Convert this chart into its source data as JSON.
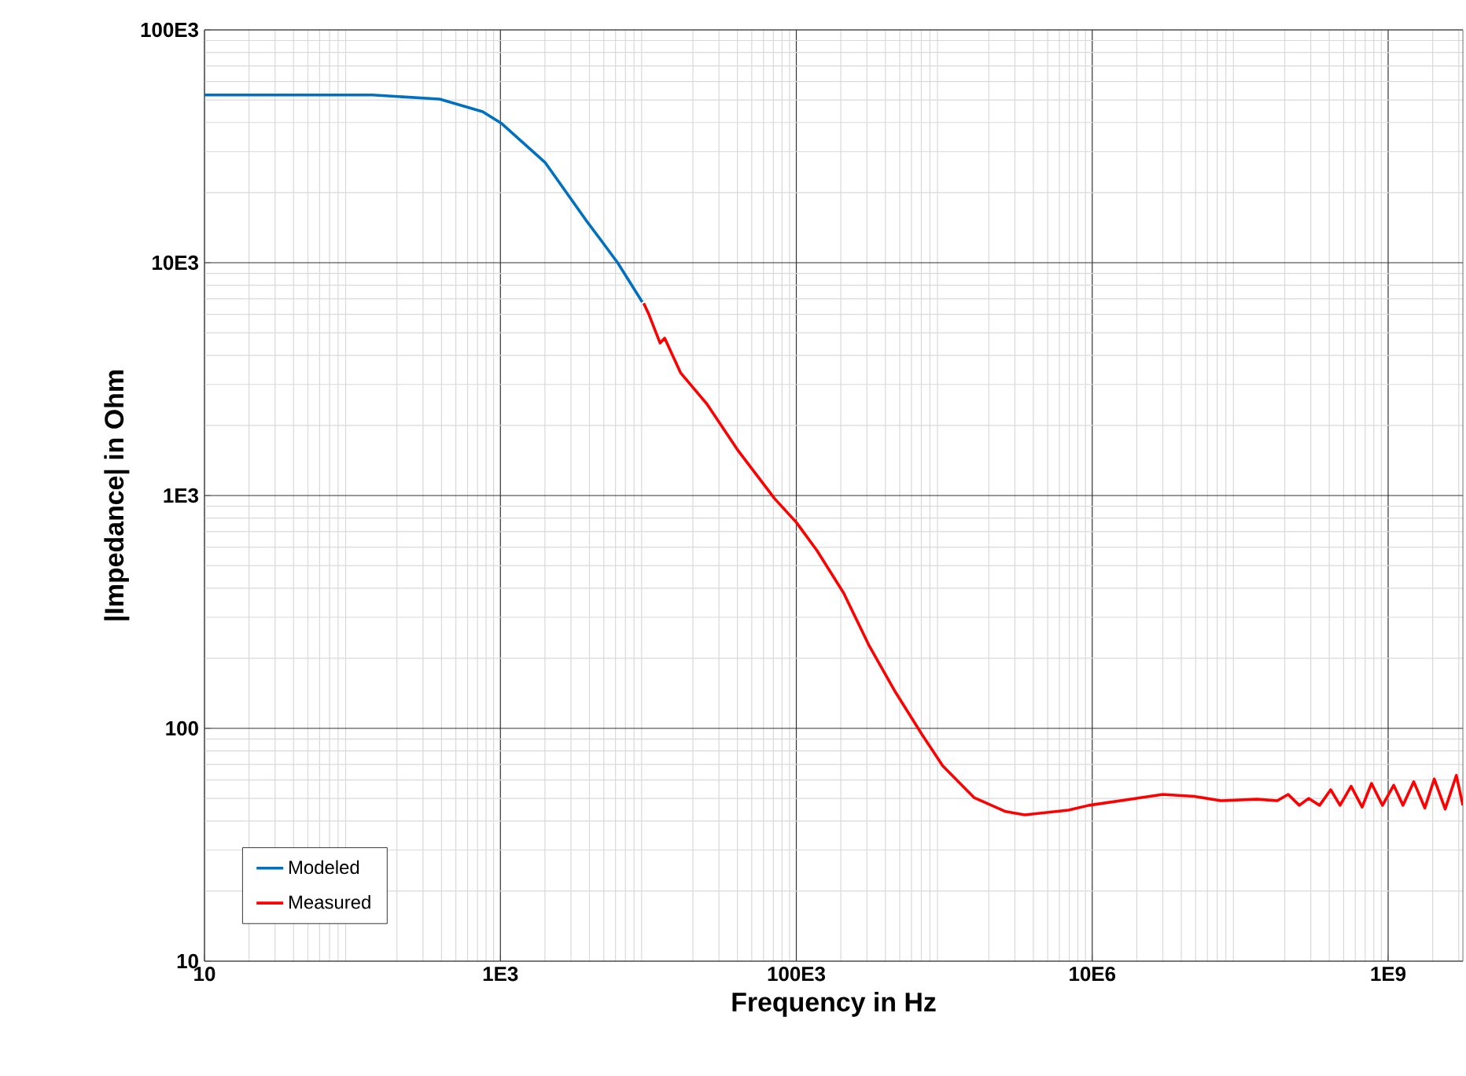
{
  "chart_data": {
    "type": "line",
    "xlabel": "Frequency in Hz",
    "ylabel": "|Impedance| in Ohm",
    "log": "xy",
    "grid": true,
    "legend": "bottom left",
    "line_style": "solid",
    "marker": "none",
    "xlim": [
      10,
      3200000000
    ],
    "ylim": [
      10,
      100000
    ],
    "xticks": [
      10,
      {
        "value": 1000,
        "label": "1E3"
      },
      {
        "value": 100000,
        "label": "100E3"
      },
      {
        "value": 10000000,
        "label": "10E6"
      },
      {
        "value": 1000000000,
        "label": "1E9"
      }
    ],
    "yticks": [
      10,
      100,
      {
        "value": 1000,
        "label": "1E3"
      },
      {
        "value": 10000,
        "label": "10E3"
      },
      {
        "value": 100000,
        "label": "100E3"
      }
    ],
    "series": [
      {
        "name": "Modeled",
        "color": "#0070c0",
        "x": [
          10,
          137,
          389,
          759,
          1010,
          2000,
          3800,
          6200,
          9100
        ],
        "values": [
          52500,
          52500,
          50400,
          44500,
          39800,
          27000,
          15200,
          10000,
          6780
        ]
      },
      {
        "name": "Measured",
        "color": "#ff0000",
        "x": [
          9300,
          10100,
          12000,
          12900,
          16500,
          24900,
          40700,
          71300,
          100000,
          138000,
          209000,
          309000,
          468000,
          708000,
          977000,
          1590000,
          2600000,
          3500000,
          6900000,
          9500000,
          30000000,
          49000000,
          74000000,
          130000000,
          178000000,
          211000000,
          251000000,
          290000000,
          344000000,
          409000000,
          473000000,
          562000000,
          667000000,
          772000000,
          916000000,
          1090000000,
          1260000000,
          1490000000,
          1770000000,
          2050000000,
          2430000000,
          2890000000,
          3200000000
        ],
        "values": [
          6700,
          5980,
          4520,
          4740,
          3370,
          2470,
          1550,
          970,
          767,
          580,
          381,
          228,
          143,
          94,
          69,
          50.4,
          43.9,
          42.5,
          44.5,
          46.7,
          52,
          51,
          48.9,
          49.6,
          48.9,
          52,
          46.7,
          50,
          46.7,
          54.5,
          46.7,
          56.4,
          45.9,
          58,
          46.7,
          57,
          46.7,
          59,
          45.5,
          60.6,
          45,
          62.8,
          46.7
        ]
      }
    ]
  }
}
